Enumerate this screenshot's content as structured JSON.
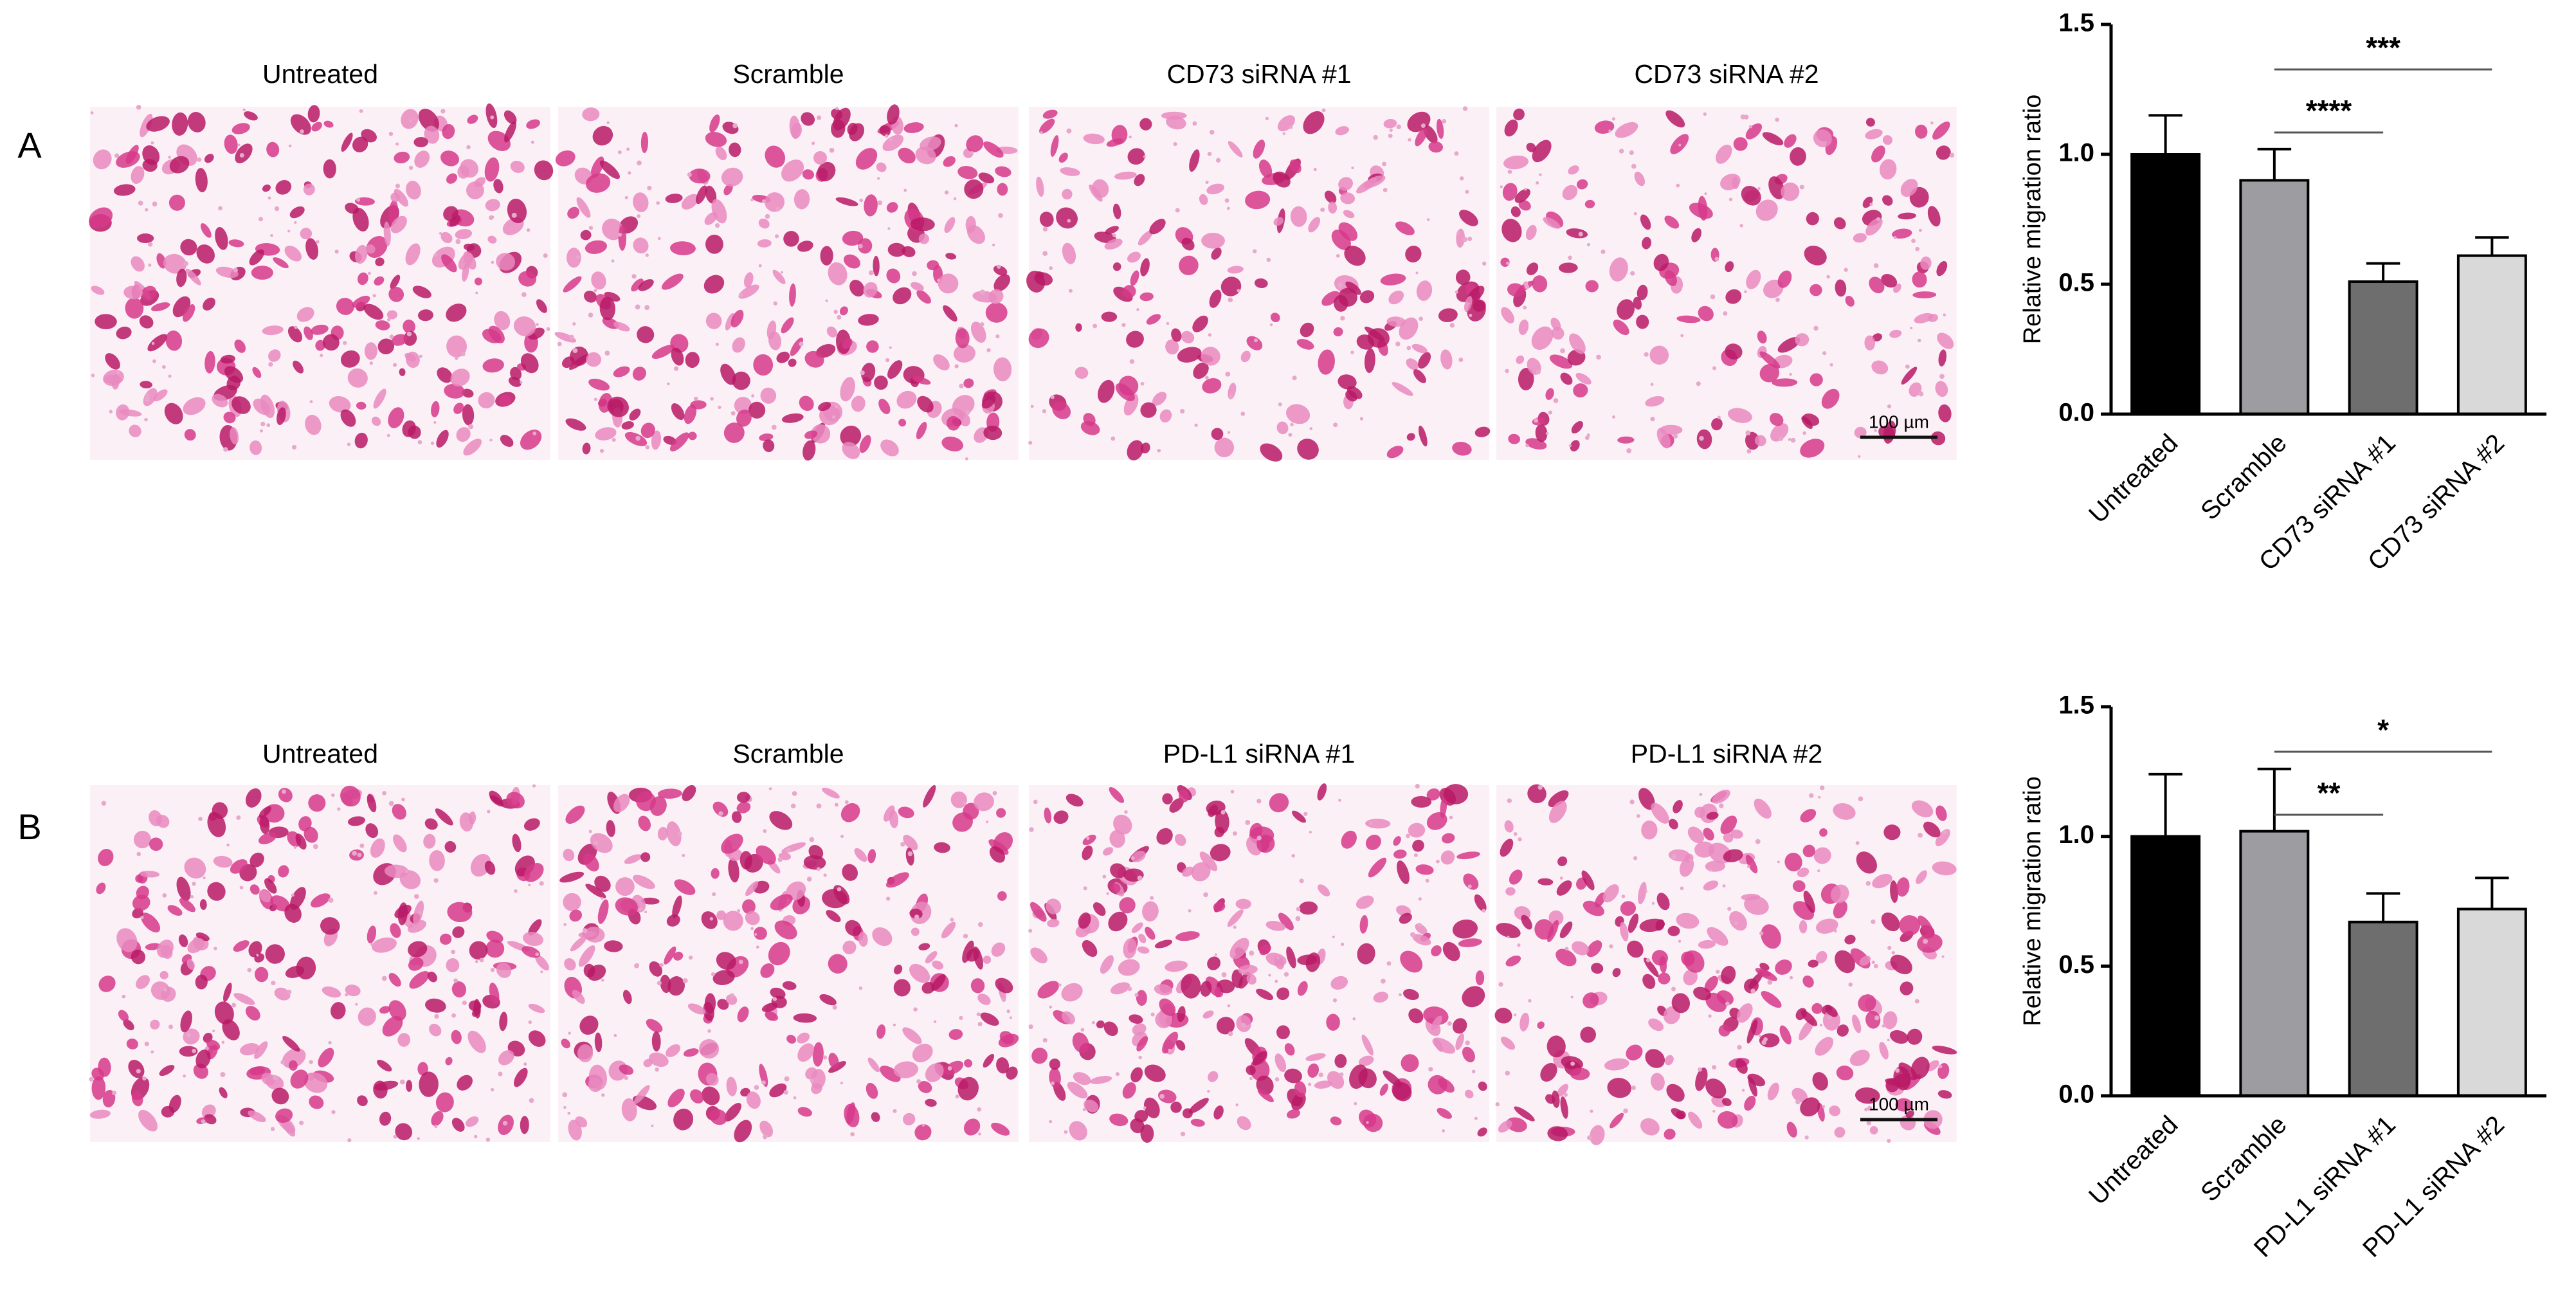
{
  "panels": [
    {
      "label": "A",
      "captions": [
        "Untreated",
        "Scramble",
        "CD73 siRNA #1",
        "CD73 siRNA #2"
      ],
      "scale_bar": "100 µm"
    },
    {
      "label": "B",
      "captions": [
        "Untreated",
        "Scramble",
        "PD-L1 siRNA #1",
        "PD-L1 siRNA #2"
      ],
      "scale_bar": "100 µm"
    }
  ],
  "chart_data": [
    {
      "type": "bar",
      "ylabel": "Relative migration ratio",
      "categories": [
        "Untreated",
        "Scramble",
        "CD73 siRNA #1",
        "CD73 siRNA #2"
      ],
      "values": [
        1.0,
        0.9,
        0.51,
        0.61
      ],
      "errors": [
        0.15,
        0.12,
        0.07,
        0.07
      ],
      "colors": [
        "#000000",
        "#9d9da1",
        "#6e6e6e",
        "#d9d9d9"
      ],
      "ylim": [
        0,
        1.5
      ],
      "yticks": [
        {
          "value": 0,
          "label": "0.0"
        },
        {
          "value": 0.5,
          "label": "0.5"
        },
        {
          "value": 1,
          "label": "1.0"
        },
        {
          "value": 1.5,
          "label": "1.5"
        }
      ],
      "significance": [
        {
          "label": "****",
          "between": [
            "Scramble",
            "CD73 siRNA #1"
          ]
        },
        {
          "label": "***",
          "between": [
            "Scramble",
            "CD73 siRNA #2"
          ]
        }
      ]
    },
    {
      "type": "bar",
      "ylabel": "Relative migration ratio",
      "categories": [
        "Untreated",
        "Scramble",
        "PD-L1 siRNA #1",
        "PD-L1 siRNA #2"
      ],
      "values": [
        1.0,
        1.02,
        0.67,
        0.72
      ],
      "errors": [
        0.24,
        0.24,
        0.11,
        0.12
      ],
      "colors": [
        "#000000",
        "#9d9da1",
        "#6e6e6e",
        "#d9d9d9"
      ],
      "ylim": [
        0,
        1.5
      ],
      "yticks": [
        {
          "value": 0,
          "label": "0.0"
        },
        {
          "value": 0.5,
          "label": "0.5"
        },
        {
          "value": 1,
          "label": "1.0"
        },
        {
          "value": 1.5,
          "label": "1.5"
        }
      ],
      "significance": [
        {
          "label": "**",
          "between": [
            "Scramble",
            "PD-L1 siRNA #1"
          ]
        },
        {
          "label": "*",
          "between": [
            "Scramble",
            "PD-L1 siRNA #2"
          ]
        }
      ]
    }
  ]
}
